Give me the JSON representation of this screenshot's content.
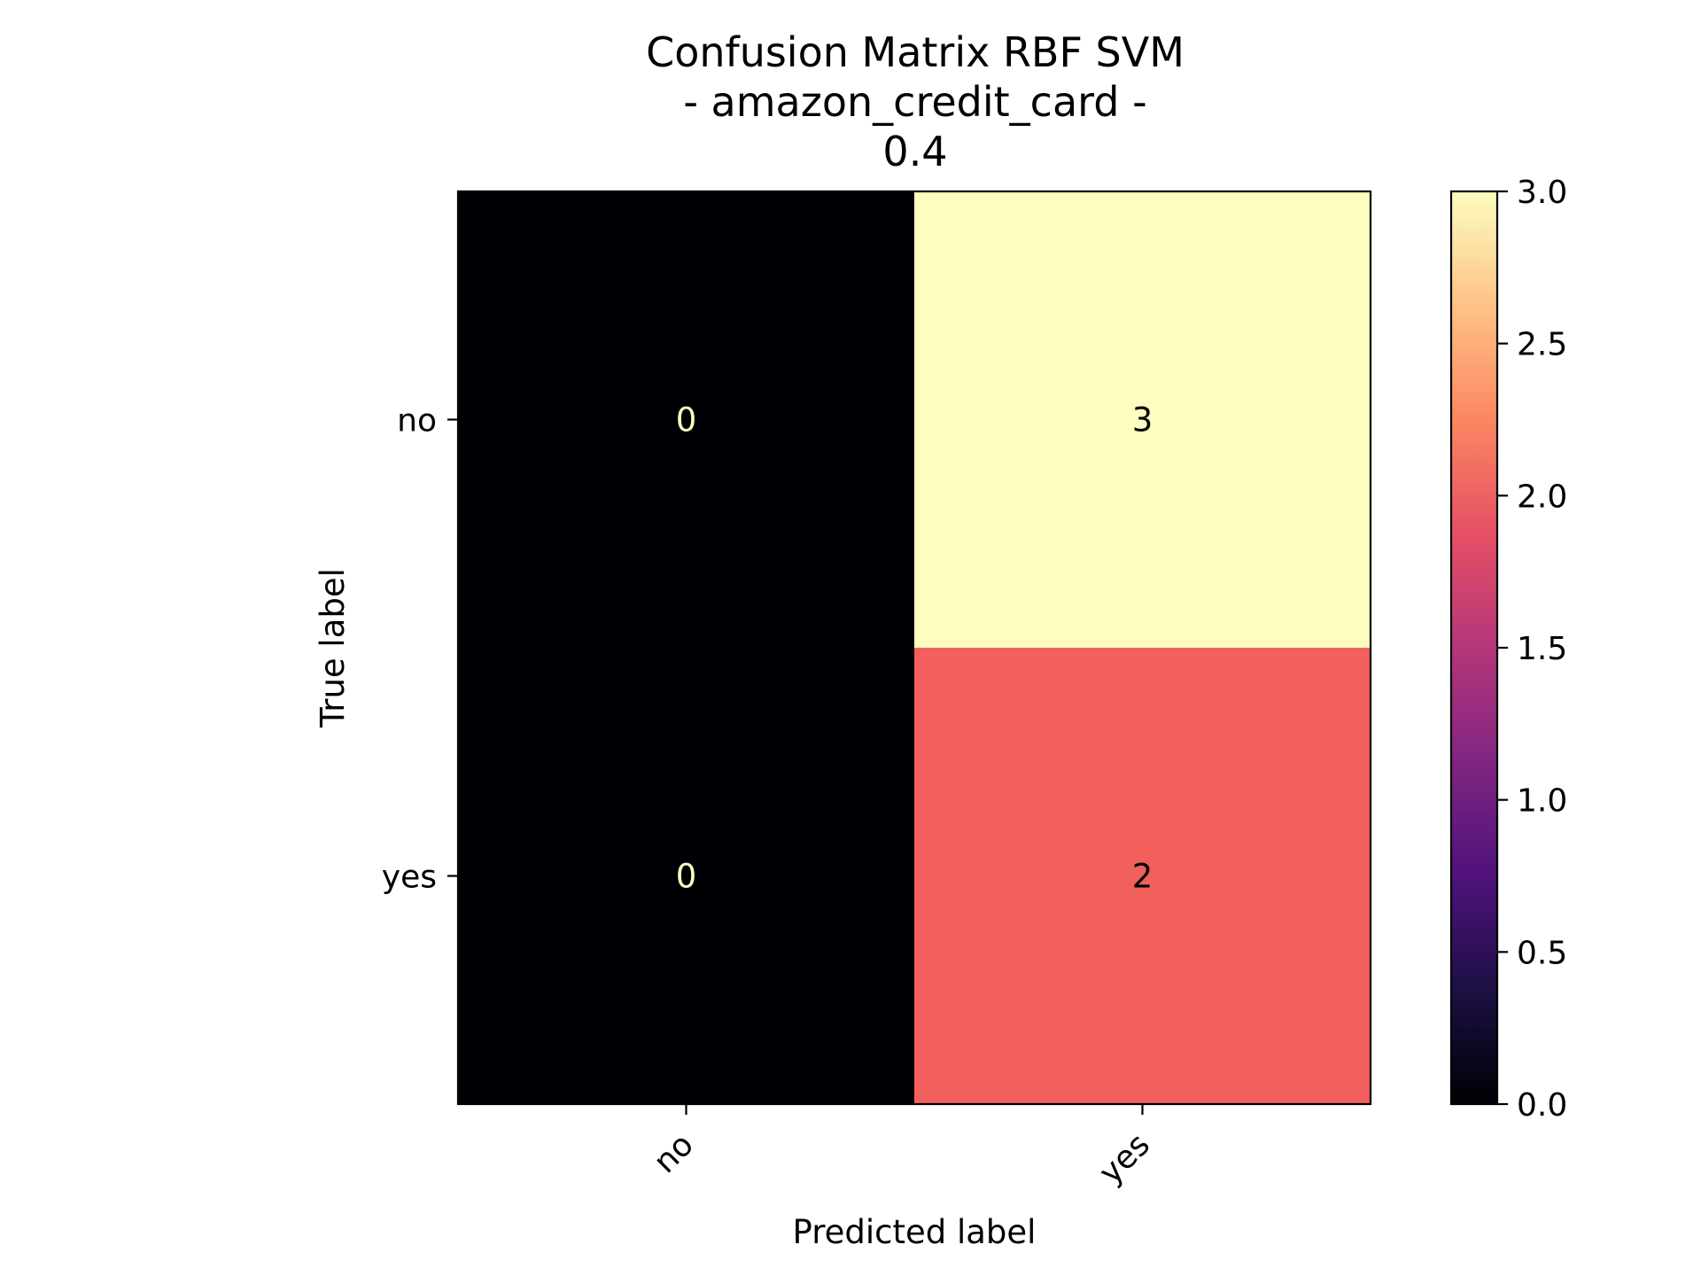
{
  "chart_data": {
    "type": "heatmap",
    "title_lines": [
      "Confusion Matrix RBF SVM",
      "- amazon_credit_card -",
      "0.4"
    ],
    "xlabel": "Predicted label",
    "ylabel": "True label",
    "x_categories": [
      "no",
      "yes"
    ],
    "y_categories": [
      "no",
      "yes"
    ],
    "matrix": [
      [
        0,
        3
      ],
      [
        0,
        2
      ]
    ],
    "colormap": "magma",
    "colorbar": {
      "range": [
        0.0,
        3.0
      ],
      "ticks": [
        "0.0",
        "0.5",
        "1.0",
        "1.5",
        "2.0",
        "2.5",
        "3.0"
      ]
    },
    "cell_colors": {
      "0": "#000004",
      "2": "#f1605d",
      "3": "#fcfdbf"
    },
    "text_colors": {
      "dark_cell": "#fcfdbf",
      "light_cell": "#000000"
    }
  }
}
